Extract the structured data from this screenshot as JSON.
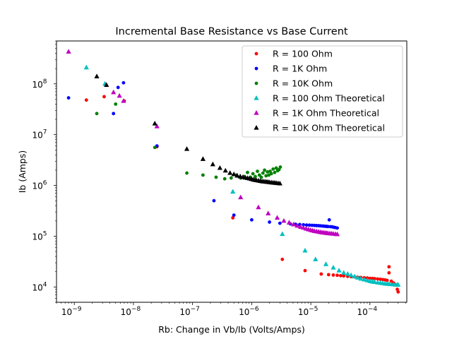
{
  "chart_data": {
    "type": "scatter",
    "title": "Incremental Base Resistance vs Base Current",
    "xlabel": "Rb: Change in Vb/Ib (Volts/Amps)",
    "ylabel": "Ib (Amps)",
    "xscale": "log",
    "yscale": "log",
    "xlim": [
      5e-10,
      0.00042
    ],
    "ylim": [
      5000.0,
      700000000.0
    ],
    "grid": false,
    "legend_position": "top-right",
    "x_ticks": [
      {
        "exp": "-9",
        "value": 1e-09
      },
      {
        "exp": "-8",
        "value": 1e-08
      },
      {
        "exp": "-7",
        "value": 1e-07
      },
      {
        "exp": "-6",
        "value": 1e-06
      },
      {
        "exp": "-5",
        "value": 1e-05
      },
      {
        "exp": "-4",
        "value": 0.0001
      }
    ],
    "y_ticks": [
      {
        "exp": "4",
        "value": 10000.0
      },
      {
        "exp": "5",
        "value": 100000.0
      },
      {
        "exp": "6",
        "value": 1000000.0
      },
      {
        "exp": "7",
        "value": 10000000.0
      },
      {
        "exp": "8",
        "value": 100000000.0
      }
    ],
    "series": [
      {
        "name": "R = 100 Ohm",
        "marker": "circle",
        "color": "#ff0000",
        "points": [
          [
            1.6e-09,
            48000000.0
          ],
          [
            3.2e-09,
            56000000.0
          ],
          [
            7e-09,
            46000000.0
          ],
          [
            2.5e-08,
            5800000.0
          ],
          [
            4.8e-07,
            230000.0
          ],
          [
            3.3e-06,
            35000.0
          ],
          [
            8e-06,
            21000.0
          ],
          [
            1.5e-05,
            18000.0
          ],
          [
            2e-05,
            17500.0
          ],
          [
            2.4e-05,
            17200.0
          ],
          [
            2.8e-05,
            17000.0
          ],
          [
            3.2e-05,
            16700.0
          ],
          [
            3.6e-05,
            16500.0
          ],
          [
            4.2e-05,
            16200.0
          ],
          [
            4.8e-05,
            16000.0
          ],
          [
            5.5e-05,
            15800.0
          ],
          [
            6.2e-05,
            15600.0
          ],
          [
            7e-05,
            15400.0
          ],
          [
            8e-05,
            15200.0
          ],
          [
            9e-05,
            15000.0
          ],
          [
            0.0001,
            14800.0
          ],
          [
            0.00011,
            14700.0
          ],
          [
            0.00012,
            14600.0
          ],
          [
            0.000135,
            14400.0
          ],
          [
            0.00015,
            14200.0
          ],
          [
            0.000165,
            14000.0
          ],
          [
            0.00018,
            13800.0
          ],
          [
            0.000195,
            13500.0
          ],
          [
            0.00021,
            19000.0
          ],
          [
            0.00021,
            25000.0
          ],
          [
            0.00023,
            13000.0
          ],
          [
            0.00025,
            12000.0
          ],
          [
            0.00027,
            11000.0
          ],
          [
            0.00029,
            9000.0
          ],
          [
            0.0003,
            8000.0
          ]
        ]
      },
      {
        "name": "R = 1K Ohm",
        "marker": "circle",
        "color": "#0000ff",
        "points": [
          [
            8e-10,
            53000000.0
          ],
          [
            4.6e-09,
            26000000.0
          ],
          [
            5.5e-09,
            85000000.0
          ],
          [
            6.8e-09,
            105000000.0
          ],
          [
            2.5e-08,
            6000000.0
          ],
          [
            2.3e-07,
            500000.0
          ],
          [
            5e-07,
            260000.0
          ],
          [
            1e-06,
            210000.0
          ],
          [
            2e-06,
            190000.0
          ],
          [
            3e-06,
            180000.0
          ],
          [
            4.5e-06,
            175000.0
          ],
          [
            5.5e-06,
            172000.0
          ],
          [
            6.5e-06,
            170000.0
          ],
          [
            7.5e-06,
            168000.0
          ],
          [
            8.5e-06,
            166000.0
          ],
          [
            9.5e-06,
            165000.0
          ],
          [
            1.05e-05,
            164000.0
          ],
          [
            1.15e-05,
            163000.0
          ],
          [
            1.25e-05,
            162000.0
          ],
          [
            1.35e-05,
            161000.0
          ],
          [
            1.45e-05,
            160000.0
          ],
          [
            1.55e-05,
            159000.0
          ],
          [
            1.65e-05,
            158000.0
          ],
          [
            1.75e-05,
            157000.0
          ],
          [
            1.85e-05,
            156000.0
          ],
          [
            1.95e-05,
            155000.0
          ],
          [
            2.05e-05,
            210000.0
          ],
          [
            2.15e-05,
            154000.0
          ],
          [
            2.3e-05,
            153000.0
          ],
          [
            2.45e-05,
            150000.0
          ],
          [
            2.6e-05,
            148000.0
          ],
          [
            2.8e-05,
            145000.0
          ]
        ]
      },
      {
        "name": "R = 10K Ohm",
        "marker": "circle",
        "color": "#008000",
        "points": [
          [
            2.4e-09,
            26000000.0
          ],
          [
            5e-09,
            40000000.0
          ],
          [
            2.3e-08,
            5600000.0
          ],
          [
            8e-08,
            1750000.0
          ],
          [
            1.5e-07,
            1600000.0
          ],
          [
            2.5e-07,
            1450000.0
          ],
          [
            3.5e-07,
            1350000.0
          ],
          [
            4.5e-07,
            1400000.0
          ],
          [
            5.5e-07,
            1600000.0
          ],
          [
            6.5e-07,
            1400000.0
          ],
          [
            7.5e-07,
            1500000.0
          ],
          [
            8.5e-07,
            1800000.0
          ],
          [
            9.5e-07,
            1450000.0
          ],
          [
            1.05e-06,
            1700000.0
          ],
          [
            1.15e-06,
            1500000.0
          ],
          [
            1.25e-06,
            1900000.0
          ],
          [
            1.35e-06,
            1600000.0
          ],
          [
            1.45e-06,
            1450000.0
          ],
          [
            1.55e-06,
            1750000.0
          ],
          [
            1.65e-06,
            2000000.0
          ],
          [
            1.75e-06,
            1550000.0
          ],
          [
            1.85e-06,
            1850000.0
          ],
          [
            1.95e-06,
            1600000.0
          ],
          [
            2.05e-06,
            1900000.0
          ],
          [
            2.15e-06,
            1700000.0
          ],
          [
            2.3e-06,
            2100000.0
          ],
          [
            2.45e-06,
            1800000.0
          ],
          [
            2.6e-06,
            2200000.0
          ],
          [
            2.75e-06,
            1950000.0
          ],
          [
            2.9e-06,
            2050000.0
          ],
          [
            3.05e-06,
            2300000.0
          ]
        ]
      },
      {
        "name": "R = 100 Ohm Theoretical",
        "marker": "triangle",
        "color": "#00bfbf",
        "points": [
          [
            1.6e-09,
            210000000.0
          ],
          [
            3.3e-09,
            100000000.0
          ],
          [
            4.8e-07,
            750000.0
          ],
          [
            3.3e-06,
            110000.0
          ],
          [
            8e-06,
            52000.0
          ],
          [
            1.2e-05,
            35000.0
          ],
          [
            1.8e-05,
            28000.0
          ],
          [
            2.4e-05,
            24000.0
          ],
          [
            3e-05,
            21000.0
          ],
          [
            3.6e-05,
            19000.0
          ],
          [
            4.2e-05,
            18000.0
          ],
          [
            4.8e-05,
            17000.0
          ],
          [
            5.5e-05,
            16000.0
          ],
          [
            6.2e-05,
            15200.0
          ],
          [
            7e-05,
            14500.0
          ],
          [
            8e-05,
            14000.0
          ],
          [
            9e-05,
            13500.0
          ],
          [
            0.0001,
            13000.0
          ],
          [
            0.00011,
            12700.0
          ],
          [
            0.00012,
            12500.0
          ],
          [
            0.000135,
            12200.0
          ],
          [
            0.00015,
            12000.0
          ],
          [
            0.000165,
            11800.0
          ],
          [
            0.00018,
            11600.0
          ],
          [
            0.000195,
            11500.0
          ],
          [
            0.00021,
            11400.0
          ],
          [
            0.00023,
            11300.0
          ],
          [
            0.00025,
            11200.0
          ],
          [
            0.00027,
            11100.0
          ],
          [
            0.00029,
            11000.0
          ],
          [
            0.0003,
            11000.0
          ]
        ]
      },
      {
        "name": "R = 1K Ohm Theoretical",
        "marker": "triangle",
        "color": "#bf00bf",
        "points": [
          [
            8e-10,
            430000000.0
          ],
          [
            4.6e-09,
            68000000.0
          ],
          [
            5.8e-09,
            58000000.0
          ],
          [
            6.8e-09,
            46000000.0
          ],
          [
            2.5e-08,
            14500000.0
          ],
          [
            6.5e-07,
            580000.0
          ],
          [
            1.3e-06,
            370000.0
          ],
          [
            1.9e-06,
            280000.0
          ],
          [
            2.7e-06,
            230000.0
          ],
          [
            3.5e-06,
            200000.0
          ],
          [
            4.3e-06,
            185000.0
          ],
          [
            5.1e-06,
            170000.0
          ],
          [
            5.9e-06,
            160000.0
          ],
          [
            6.7e-06,
            152000.0
          ],
          [
            7.5e-06,
            146000.0
          ],
          [
            8.3e-06,
            140000.0
          ],
          [
            9.1e-06,
            136000.0
          ],
          [
            9.9e-06,
            132000.0
          ],
          [
            1.07e-05,
            129000.0
          ],
          [
            1.15e-05,
            126000.0
          ],
          [
            1.25e-05,
            124000.0
          ],
          [
            1.35e-05,
            122000.0
          ],
          [
            1.45e-05,
            120000.0
          ],
          [
            1.55e-05,
            118000.0
          ],
          [
            1.65e-05,
            117000.0
          ],
          [
            1.75e-05,
            116000.0
          ],
          [
            1.85e-05,
            115000.0
          ],
          [
            1.95e-05,
            114000.0
          ],
          [
            2.1e-05,
            113000.0
          ],
          [
            2.25e-05,
            112000.0
          ],
          [
            2.4e-05,
            111000.0
          ],
          [
            2.6e-05,
            110000.0
          ],
          [
            2.8e-05,
            109000.0
          ]
        ]
      },
      {
        "name": "R = 10K Ohm Theoretical",
        "marker": "triangle",
        "color": "#000000",
        "points": [
          [
            2.4e-09,
            140000000.0
          ],
          [
            3.5e-09,
            95000000.0
          ],
          [
            2.3e-08,
            16500000.0
          ],
          [
            8e-08,
            5200000.0
          ],
          [
            1.5e-07,
            3300000.0
          ],
          [
            2.2e-07,
            2600000.0
          ],
          [
            2.9e-07,
            2200000.0
          ],
          [
            3.6e-07,
            1950000.0
          ],
          [
            4.3e-07,
            1750000.0
          ],
          [
            5e-07,
            1650000.0
          ],
          [
            5.7e-07,
            1550000.0
          ],
          [
            6.4e-07,
            1500000.0
          ],
          [
            7.1e-07,
            1450000.0
          ],
          [
            7.8e-07,
            1420000.0
          ],
          [
            8.5e-07,
            1390000.0
          ],
          [
            9.2e-07,
            1360000.0
          ],
          [
            9.9e-07,
            1330000.0
          ],
          [
            1.06e-06,
            1300000.0
          ],
          [
            1.13e-06,
            1280000.0
          ],
          [
            1.2e-06,
            1260000.0
          ],
          [
            1.3e-06,
            1240000.0
          ],
          [
            1.4e-06,
            1220000.0
          ],
          [
            1.5e-06,
            1200000.0
          ],
          [
            1.6e-06,
            1190000.0
          ],
          [
            1.7e-06,
            1180000.0
          ],
          [
            1.8e-06,
            1170000.0
          ],
          [
            1.9e-06,
            1160000.0
          ],
          [
            2e-06,
            1150000.0
          ],
          [
            2.15e-06,
            1140000.0
          ],
          [
            2.3e-06,
            1130000.0
          ],
          [
            2.45e-06,
            1120000.0
          ],
          [
            2.6e-06,
            1110000.0
          ],
          [
            2.8e-06,
            1100000.0
          ],
          [
            3e-06,
            1090000.0
          ]
        ]
      }
    ]
  }
}
